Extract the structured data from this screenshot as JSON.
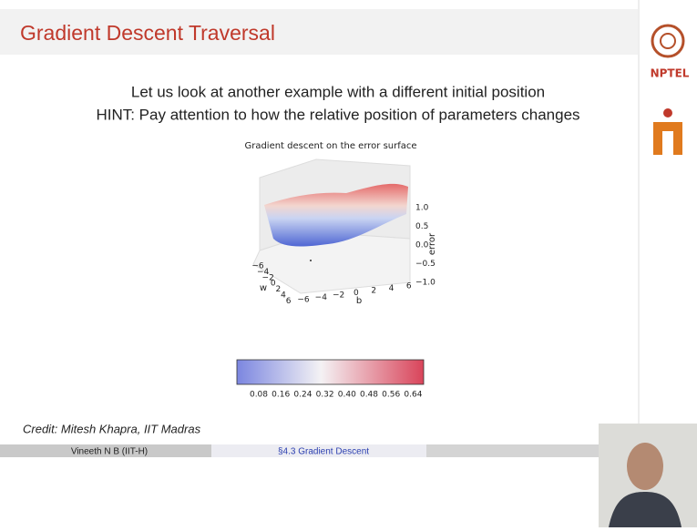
{
  "header": {
    "title": "Gradient Descent Traversal"
  },
  "body": {
    "lines": [
      "Let us look at another example with a different initial position",
      "HINT: Pay attention to how the relative position of parameters changes"
    ]
  },
  "figure": {
    "title": "Gradient descent on the error surface",
    "z_axis": {
      "label": "error",
      "ticks": [
        "1.0",
        "0.5",
        "0.0",
        "−0.5",
        "−1.0"
      ]
    },
    "w_axis": {
      "label": "w",
      "ticks": [
        "−6",
        "−4",
        "−2",
        "0",
        "2",
        "4",
        "6"
      ]
    },
    "b_axis": {
      "label": "b",
      "ticks": [
        "−6",
        "−4",
        "−2",
        "0",
        "2",
        "4",
        "6"
      ]
    },
    "colorbar": {
      "ticks": [
        "0.08",
        "0.16",
        "0.24",
        "0.32",
        "0.40",
        "0.48",
        "0.56",
        "0.64"
      ]
    }
  },
  "credit": "Credit: Mitesh Khapra, IIT Madras",
  "footer": {
    "left": "Vineeth N B  (IIT-H)",
    "center": "§4.3 Gradient Descent"
  },
  "logo": {
    "label": "NPTEL"
  }
}
